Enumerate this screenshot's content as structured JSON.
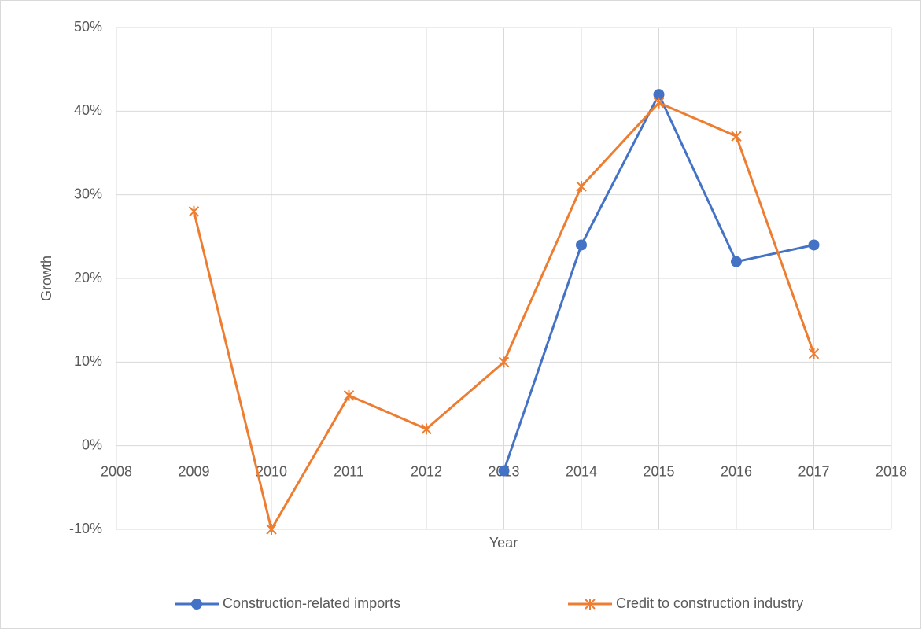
{
  "chart_data": {
    "type": "line",
    "x_label": "Year",
    "y_label": "Growth",
    "x": [
      2009,
      2010,
      2011,
      2012,
      2013,
      2014,
      2015,
      2016,
      2017
    ],
    "series": [
      {
        "name": "Construction-related imports",
        "color": "#4472c4",
        "marker": "circle",
        "values": [
          null,
          null,
          null,
          null,
          -3,
          24,
          42,
          22,
          24
        ]
      },
      {
        "name": "Credit to construction industry",
        "color": "#ed7d31",
        "marker": "star",
        "values": [
          28,
          -10,
          6,
          2,
          10,
          31,
          41,
          37,
          11
        ]
      }
    ],
    "xlim": [
      2008,
      2018
    ],
    "xticks": [
      2008,
      2009,
      2010,
      2011,
      2012,
      2013,
      2014,
      2015,
      2016,
      2017,
      2018
    ],
    "ylim": [
      -10,
      50
    ],
    "yticks": [
      {
        "value": -10,
        "label": "-10%"
      },
      {
        "value": 0,
        "label": "0%"
      },
      {
        "value": 10,
        "label": "10%"
      },
      {
        "value": 20,
        "label": "20%"
      },
      {
        "value": 30,
        "label": "30%"
      },
      {
        "value": 40,
        "label": "40%"
      },
      {
        "value": 50,
        "label": "50%"
      }
    ],
    "grid": true,
    "legend": "bottom"
  }
}
